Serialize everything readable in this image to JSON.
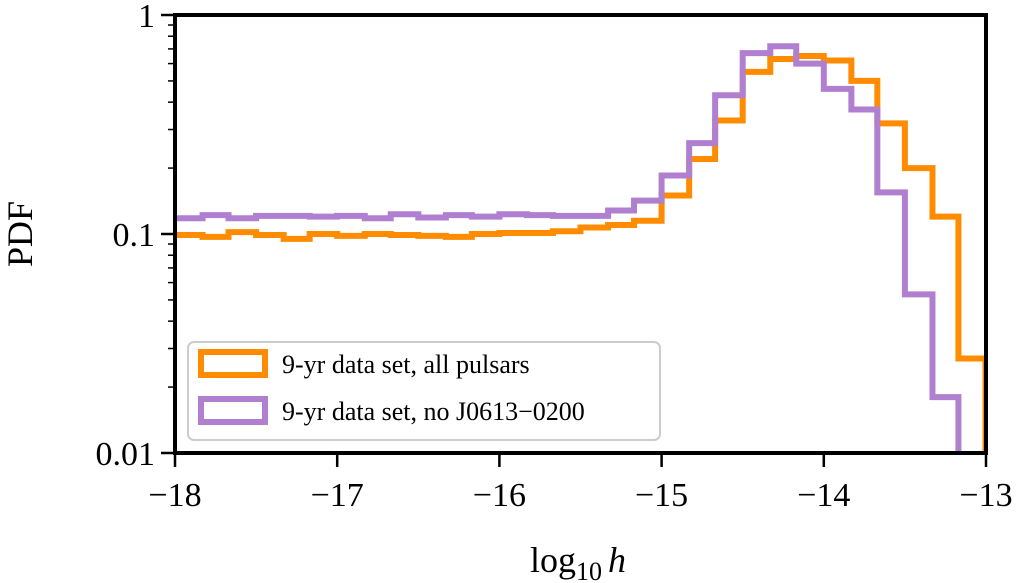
{
  "chart_data": {
    "type": "histogram-step",
    "title": "",
    "xlabel": "log",
    "xlabel_sub": "10",
    "xlabel_var": "h",
    "ylabel": "PDF",
    "xlim": [
      -18,
      -13
    ],
    "ylim": [
      0.01,
      1
    ],
    "yscale": "log",
    "x_ticks": [
      -18,
      -17,
      -16,
      -15,
      -14,
      -13
    ],
    "x_tick_labels": [
      "−18",
      "−17",
      "−16",
      "−15",
      "−14",
      "−13"
    ],
    "y_ticks": [
      0.01,
      0.1,
      1
    ],
    "y_tick_labels": [
      "0.01",
      "0.1",
      "1"
    ],
    "bin_edges": [
      -18.0,
      -17.83,
      -17.67,
      -17.5,
      -17.33,
      -17.17,
      -17.0,
      -16.83,
      -16.67,
      -16.5,
      -16.33,
      -16.17,
      -16.0,
      -15.83,
      -15.67,
      -15.5,
      -15.33,
      -15.17,
      -15.0,
      -14.83,
      -14.67,
      -14.5,
      -14.33,
      -14.17,
      -14.0,
      -13.83,
      -13.67,
      -13.5,
      -13.33,
      -13.17
    ],
    "series": [
      {
        "name": "9-yr data set, all pulsars",
        "color": "#ff8c00",
        "values": [
          0.099,
          0.097,
          0.102,
          0.099,
          0.095,
          0.1,
          0.098,
          0.1,
          0.099,
          0.098,
          0.097,
          0.1,
          0.101,
          0.101,
          0.103,
          0.107,
          0.11,
          0.115,
          0.15,
          0.22,
          0.33,
          0.55,
          0.63,
          0.65,
          0.62,
          0.5,
          0.32,
          0.2,
          0.12,
          0.027
        ]
      },
      {
        "name": "9-yr data set, no J0613−0200",
        "color": "#b07fd0",
        "values": [
          0.118,
          0.122,
          0.118,
          0.121,
          0.121,
          0.12,
          0.121,
          0.118,
          0.123,
          0.119,
          0.122,
          0.12,
          0.123,
          0.122,
          0.121,
          0.121,
          0.128,
          0.142,
          0.185,
          0.26,
          0.43,
          0.67,
          0.72,
          0.6,
          0.46,
          0.37,
          0.155,
          0.053,
          0.018,
          0.0095
        ]
      }
    ],
    "legend_position": "lower-left"
  }
}
